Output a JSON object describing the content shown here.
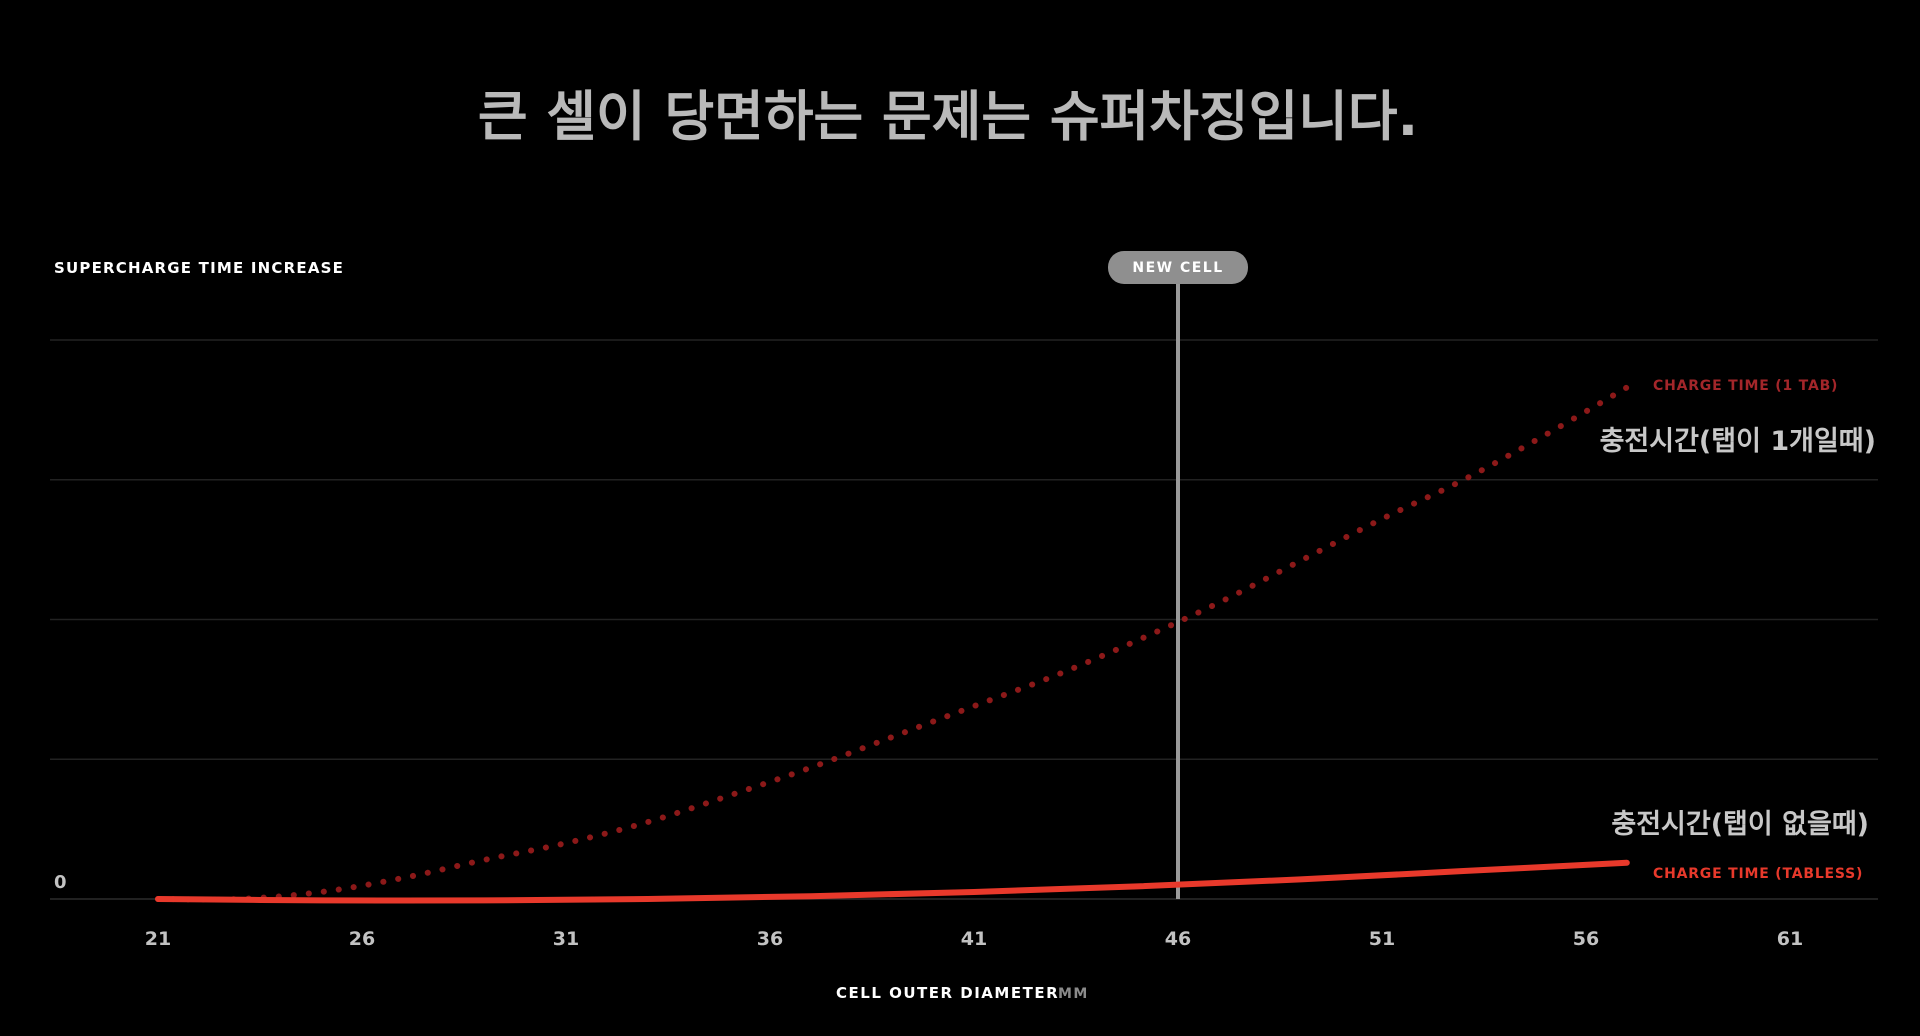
{
  "chart_data": {
    "type": "line",
    "title": "큰 셀이 당면하는 문제는 슈퍼차징입니다.",
    "ylabel": "SUPERCHARGE TIME INCREASE",
    "xlabel": "CELL OUTER DIAMETER",
    "xunit": "MM",
    "x_ticks": [
      "21",
      "26",
      "31",
      "36",
      "41",
      "46",
      "51",
      "56",
      "61"
    ],
    "xlim": [
      21,
      61
    ],
    "ylim": [
      0,
      4
    ],
    "y_zero_label": "0",
    "grid": true,
    "marker": {
      "label": "NEW CELL",
      "x": 46
    },
    "series": [
      {
        "name": "CHARGE TIME (1 TAB)",
        "name_ko": "충전시간(탭이 1개일때)",
        "style": "dotted",
        "color": "#9b1c1c",
        "x": [
          21,
          23,
          25,
          27,
          29,
          31,
          33,
          35,
          37,
          39,
          41,
          43,
          45,
          47,
          49,
          51,
          53,
          55,
          57
        ],
        "y": [
          0.0,
          0.0,
          0.05,
          0.15,
          0.28,
          0.4,
          0.55,
          0.74,
          0.94,
          1.16,
          1.38,
          1.6,
          1.85,
          2.12,
          2.42,
          2.72,
          3.0,
          3.32,
          3.66
        ]
      },
      {
        "name": "CHARGE TIME (TABLESS)",
        "name_ko": "충전시간(탭이 없을때)",
        "style": "solid",
        "color": "#e8392b",
        "x": [
          21,
          25,
          29,
          33,
          37,
          41,
          45,
          49,
          53,
          57
        ],
        "y": [
          0.0,
          -0.01,
          -0.01,
          0.0,
          0.02,
          0.05,
          0.09,
          0.14,
          0.2,
          0.26
        ]
      }
    ]
  }
}
